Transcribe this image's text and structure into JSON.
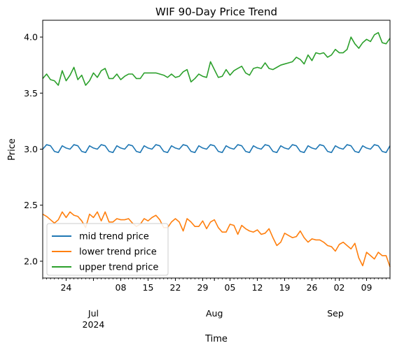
{
  "chart_data": {
    "type": "line",
    "title": "WIF 90-Day Price Trend",
    "xlabel": "Time",
    "ylabel": "Price",
    "x_start": "2024-06-18",
    "x_end": "2024-09-15",
    "ylim": [
      1.85,
      4.15
    ],
    "yticks": [
      {
        "value": 2.0,
        "label": "2.0"
      },
      {
        "value": 2.5,
        "label": "2.5"
      },
      {
        "value": 3.0,
        "label": "3.0"
      },
      {
        "value": 3.5,
        "label": "3.5"
      },
      {
        "value": 4.0,
        "label": "4.0"
      }
    ],
    "xticks": [
      {
        "date": "2024-06-24",
        "label": "24",
        "sublabel": "",
        "subsublabel": ""
      },
      {
        "date": "2024-07-01",
        "label": "",
        "sublabel": "Jul",
        "subsublabel": "2024"
      },
      {
        "date": "2024-07-08",
        "label": "08",
        "sublabel": "",
        "subsublabel": ""
      },
      {
        "date": "2024-07-15",
        "label": "15",
        "sublabel": "",
        "subsublabel": ""
      },
      {
        "date": "2024-07-22",
        "label": "22",
        "sublabel": "",
        "subsublabel": ""
      },
      {
        "date": "2024-07-29",
        "label": "29",
        "sublabel": "",
        "subsublabel": ""
      },
      {
        "date": "2024-08-01",
        "label": "",
        "sublabel": "Aug",
        "subsublabel": ""
      },
      {
        "date": "2024-08-05",
        "label": "05",
        "sublabel": "",
        "subsublabel": ""
      },
      {
        "date": "2024-08-12",
        "label": "12",
        "sublabel": "",
        "subsublabel": ""
      },
      {
        "date": "2024-08-19",
        "label": "19",
        "sublabel": "",
        "subsublabel": ""
      },
      {
        "date": "2024-08-26",
        "label": "26",
        "sublabel": "",
        "subsublabel": ""
      },
      {
        "date": "2024-09-01",
        "label": "",
        "sublabel": "Sep",
        "subsublabel": ""
      },
      {
        "date": "2024-09-02",
        "label": "02",
        "sublabel": "",
        "subsublabel": ""
      },
      {
        "date": "2024-09-09",
        "label": "09",
        "sublabel": "",
        "subsublabel": ""
      }
    ],
    "legend_position": "lower-left",
    "series": [
      {
        "name": "mid trend price",
        "color": "#1f77b4",
        "values": [
          3.0,
          3.04,
          3.03,
          2.98,
          2.97,
          3.03,
          3.01,
          3.0,
          3.04,
          3.03,
          2.98,
          2.97,
          3.03,
          3.01,
          3.0,
          3.04,
          3.03,
          2.98,
          2.97,
          3.03,
          3.01,
          3.0,
          3.04,
          3.03,
          2.98,
          2.97,
          3.03,
          3.01,
          3.0,
          3.04,
          3.03,
          2.98,
          2.97,
          3.03,
          3.01,
          3.0,
          3.04,
          3.03,
          2.98,
          2.97,
          3.03,
          3.01,
          3.0,
          3.04,
          3.03,
          2.98,
          2.97,
          3.03,
          3.01,
          3.0,
          3.04,
          3.03,
          2.98,
          2.97,
          3.03,
          3.01,
          3.0,
          3.04,
          3.03,
          2.98,
          2.97,
          3.03,
          3.01,
          3.0,
          3.04,
          3.03,
          2.98,
          2.97,
          3.03,
          3.01,
          3.0,
          3.04,
          3.03,
          2.98,
          2.97,
          3.03,
          3.01,
          3.0,
          3.04,
          3.03,
          2.98,
          2.97,
          3.03,
          3.01,
          3.0,
          3.04,
          3.03,
          2.98,
          2.97,
          3.03
        ]
      },
      {
        "name": "lower trend price",
        "color": "#ff7f0e",
        "values": [
          2.42,
          2.4,
          2.37,
          2.34,
          2.37,
          2.44,
          2.39,
          2.44,
          2.41,
          2.4,
          2.36,
          2.3,
          2.42,
          2.39,
          2.44,
          2.36,
          2.44,
          2.35,
          2.35,
          2.38,
          2.37,
          2.37,
          2.38,
          2.34,
          2.31,
          2.33,
          2.38,
          2.36,
          2.39,
          2.41,
          2.37,
          2.3,
          2.3,
          2.35,
          2.38,
          2.35,
          2.27,
          2.38,
          2.35,
          2.31,
          2.31,
          2.36,
          2.29,
          2.35,
          2.37,
          2.3,
          2.26,
          2.26,
          2.33,
          2.32,
          2.24,
          2.32,
          2.29,
          2.27,
          2.26,
          2.28,
          2.24,
          2.25,
          2.29,
          2.21,
          2.14,
          2.17,
          2.25,
          2.23,
          2.21,
          2.22,
          2.27,
          2.21,
          2.17,
          2.2,
          2.19,
          2.19,
          2.17,
          2.14,
          2.13,
          2.09,
          2.15,
          2.17,
          2.14,
          2.11,
          2.16,
          2.03,
          1.96,
          2.08,
          2.05,
          2.02,
          2.08,
          2.05,
          2.05,
          1.95
        ]
      },
      {
        "name": "upper trend price",
        "color": "#2ca02c",
        "values": [
          3.63,
          3.67,
          3.62,
          3.61,
          3.57,
          3.7,
          3.61,
          3.66,
          3.73,
          3.62,
          3.66,
          3.57,
          3.61,
          3.68,
          3.64,
          3.7,
          3.72,
          3.63,
          3.63,
          3.67,
          3.62,
          3.65,
          3.67,
          3.67,
          3.63,
          3.63,
          3.68,
          3.68,
          3.68,
          3.68,
          3.67,
          3.66,
          3.64,
          3.67,
          3.64,
          3.65,
          3.69,
          3.71,
          3.6,
          3.63,
          3.67,
          3.65,
          3.64,
          3.78,
          3.71,
          3.64,
          3.65,
          3.71,
          3.66,
          3.7,
          3.72,
          3.74,
          3.68,
          3.66,
          3.72,
          3.73,
          3.72,
          3.77,
          3.72,
          3.71,
          3.73,
          3.75,
          3.76,
          3.77,
          3.78,
          3.82,
          3.8,
          3.76,
          3.84,
          3.79,
          3.86,
          3.85,
          3.86,
          3.82,
          3.84,
          3.89,
          3.86,
          3.86,
          3.89,
          4.0,
          3.94,
          3.9,
          3.95,
          3.98,
          3.96,
          4.02,
          4.04,
          3.95,
          3.94,
          3.99
        ]
      }
    ]
  }
}
